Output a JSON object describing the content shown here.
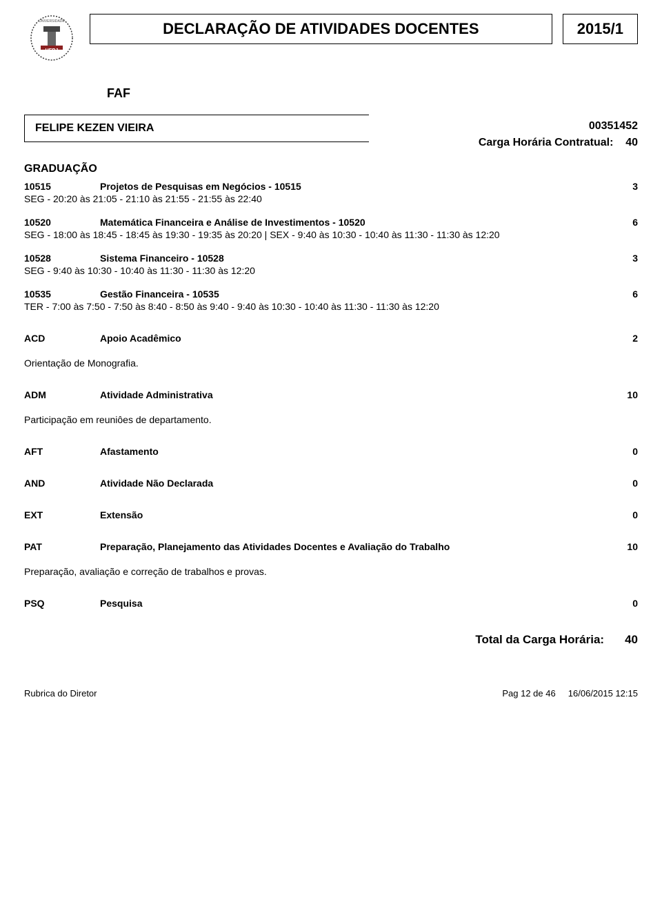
{
  "header": {
    "title": "DECLARAÇÃO DE ATIVIDADES DOCENTES",
    "period": "2015/1",
    "unit": "FAF"
  },
  "teacher": {
    "name": "FELIPE KEZEN VIEIRA",
    "id": "00351452",
    "carga_label": "Carga Horária Contratual:",
    "carga_value": "40"
  },
  "graduation_label": "GRADUAÇÃO",
  "courses": [
    {
      "code": "10515",
      "name": "Projetos de Pesquisas em Negócios - 10515",
      "hours": "3",
      "time": "SEG - 20:20 às 21:05 - 21:10 às 21:55 - 21:55 às 22:40"
    },
    {
      "code": "10520",
      "name": "Matemática Financeira e Análise de Investimentos - 10520",
      "hours": "6",
      "time": "SEG - 18:00 às 18:45 - 18:45 às 19:30 - 19:35 às 20:20  |  SEX - 9:40 às 10:30 - 10:40 às 11:30 - 11:30 às 12:20"
    },
    {
      "code": "10528",
      "name": "Sistema Financeiro - 10528",
      "hours": "3",
      "time": "SEG - 9:40 às 10:30 - 10:40 às 11:30 - 11:30 às 12:20"
    },
    {
      "code": "10535",
      "name": "Gestão Financeira - 10535",
      "hours": "6",
      "time": "TER - 7:00 às 7:50 - 7:50 às 8:40 - 8:50 às 9:40 - 9:40 às 10:30 - 10:40 às 11:30 - 11:30 às 12:20"
    }
  ],
  "categories": [
    {
      "code": "ACD",
      "name": "Apoio Acadêmico",
      "hours": "2",
      "desc": "Orientação de Monografia."
    },
    {
      "code": "ADM",
      "name": "Atividade Administrativa",
      "hours": "10",
      "desc": "Participação em reuniôes de departamento."
    },
    {
      "code": "AFT",
      "name": "Afastamento",
      "hours": "0",
      "desc": ""
    },
    {
      "code": "AND",
      "name": "Atividade Não Declarada",
      "hours": "0",
      "desc": ""
    },
    {
      "code": "EXT",
      "name": "Extensão",
      "hours": "0",
      "desc": ""
    },
    {
      "code": "PAT",
      "name": "Preparação, Planejamento das Atividades Docentes e Avaliação do Trabalho",
      "hours": "10",
      "desc": "Preparação, avaliação e correção de trabalhos e provas."
    },
    {
      "code": "PSQ",
      "name": "Pesquisa",
      "hours": "0",
      "desc": ""
    }
  ],
  "total": {
    "label": "Total da Carga Horária:",
    "value": "40"
  },
  "footer": {
    "rubrica": "Rubrica do Diretor",
    "page": "Pag  12 de 46",
    "datetime": "16/06/2015 12:15"
  },
  "colors": {
    "text": "#000000",
    "bg": "#ffffff",
    "border": "#000000"
  }
}
